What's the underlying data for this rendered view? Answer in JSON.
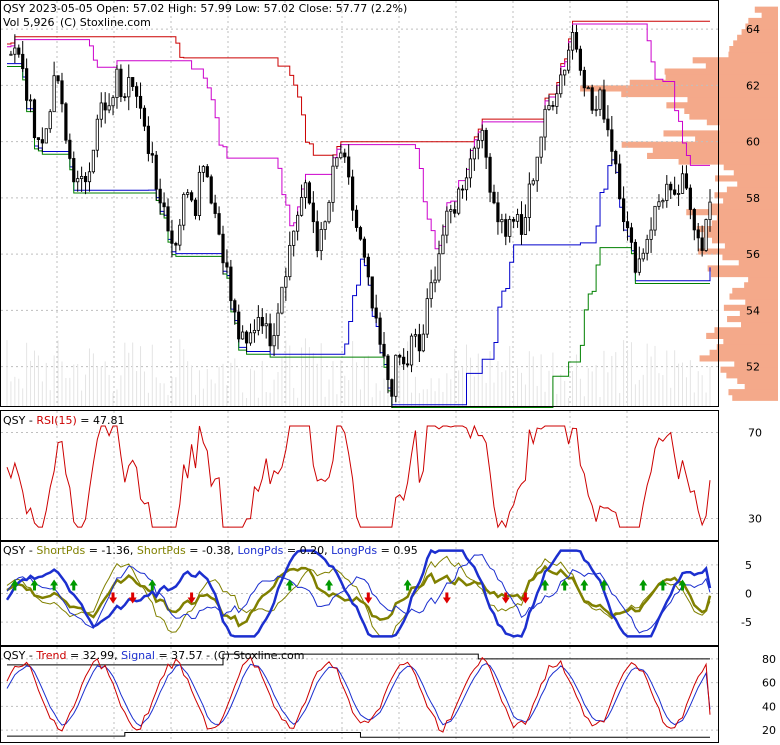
{
  "colors": {
    "panel_border": "#000000",
    "grid": "#bfbfbf",
    "profile": "#f4a98a",
    "red": "#cc0000",
    "magenta": "#cc00cc",
    "blue": "#0000cc",
    "green": "#008000",
    "olive": "#808000",
    "darkblue": "#1c2fcf",
    "arrow_green": "#009900",
    "arrow_red": "#dd0000"
  },
  "price_panel": {
    "header": "QSY  2023-05-05 Open: 57.02  High: 57.99  Low: 57.02  Close: 57.77 (2.2%)",
    "volume": "Vol 5,926",
    "copyright": "(C) Stoxline.com",
    "ticks": [
      "64",
      "62",
      "60",
      "58",
      "56",
      "54",
      "52"
    ]
  },
  "rsi_panel": {
    "ticker": "QSY",
    "indicator": "RSI(15)",
    "value": "= 47.81",
    "ticks": [
      "70",
      "30"
    ]
  },
  "pds_panel": {
    "ticker": "QSY",
    "short1_label": "ShortPds",
    "short1_value": "= -1.36,",
    "short2_label": "ShortPds",
    "short2_value": "= -0.38,",
    "long1_label": "LongPds",
    "long1_value": "= 0.20,",
    "long2_label": "LongPds",
    "long2_value": "= 0.95",
    "ticks": [
      "5",
      "0",
      "-5"
    ]
  },
  "trend_panel": {
    "ticker": "QSY",
    "trend_label": "Trend",
    "trend_value": "= 32.99,",
    "signal_label": "Signal",
    "signal_value": "= 37.57",
    "copyright": "(C) Stoxline.com",
    "ticks": [
      "80",
      "60",
      "40",
      "20"
    ]
  },
  "chart_data": {
    "type": "line",
    "title": "QSY 2023-05-05 Open: 57.02 High: 57.99 Low: 57.02 Close: 57.77 (2.2%)",
    "ohlc_last": {
      "date": "2023-05-05",
      "open": 57.02,
      "high": 57.99,
      "low": 57.02,
      "close": 57.77,
      "change_pct": 2.2,
      "volume": 5926
    },
    "price_ylim": [
      50.6,
      65.0
    ],
    "price_series_close": [
      63.2,
      63.5,
      62.6,
      61.3,
      60.4,
      59.8,
      61.5,
      62.3,
      60.1,
      59.1,
      58.2,
      58.9,
      60.1,
      61.2,
      60.8,
      62.4,
      61.7,
      62.9,
      61.4,
      60.2,
      59.6,
      58.1,
      57.5,
      56.2,
      57.4,
      58.6,
      57.8,
      59.6,
      58.4,
      57.1,
      55.9,
      54.2,
      53.1,
      52.6,
      53.4,
      54.1,
      52.9,
      53.6,
      55.1,
      56.2,
      57.4,
      58.3,
      57.6,
      56.2,
      57.1,
      58.8,
      59.7,
      58.6,
      57.2,
      56.1,
      54.6,
      53.2,
      52.1,
      51.2,
      52.4,
      51.8,
      53.1,
      52.5,
      54.1,
      55.4,
      56.6,
      57.3,
      57.9,
      58.7,
      59.4,
      60.5,
      59.6,
      58.1,
      57.2,
      56.8,
      57.4,
      56.6,
      58.1,
      59.4,
      60.6,
      61.4,
      62.1,
      62.8,
      63.9,
      63.1,
      61.9,
      60.9,
      61.6,
      60.4,
      59.3,
      57.6,
      56.2,
      55.6,
      56.4,
      57.2,
      57.9,
      58.4,
      57.6,
      58.6,
      57.9,
      57.1,
      56.4,
      57.77
    ],
    "rsi": {
      "name": "RSI(15)",
      "last": 47.81,
      "ylim": [
        20,
        80
      ],
      "levels": [
        70,
        30
      ]
    },
    "pds": {
      "ylim": [
        -9,
        9
      ],
      "series": [
        {
          "name": "ShortPds",
          "last": -1.36
        },
        {
          "name": "ShortPds",
          "last": -0.38
        },
        {
          "name": "LongPds",
          "last": 0.2
        },
        {
          "name": "LongPds",
          "last": 0.95
        }
      ]
    },
    "trend": {
      "ylim": [
        10,
        90
      ],
      "series": [
        {
          "name": "Trend",
          "last": 32.99
        },
        {
          "name": "Signal",
          "last": 37.57
        }
      ]
    },
    "grid": true
  }
}
